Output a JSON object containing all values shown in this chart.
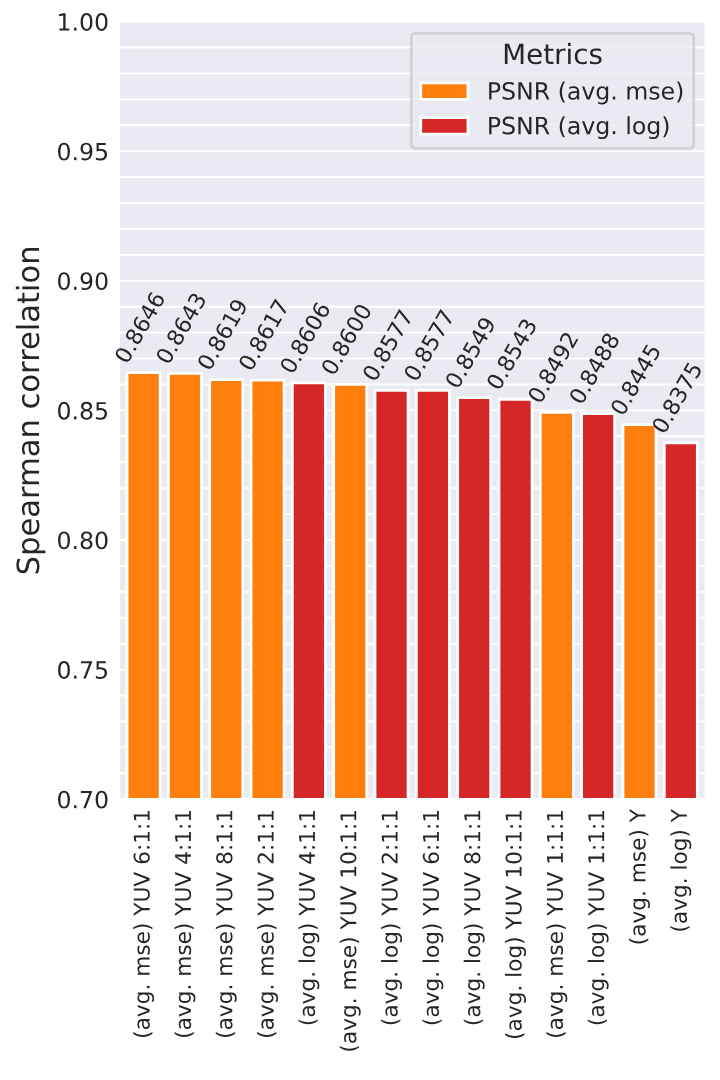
{
  "chart_data": {
    "type": "bar",
    "categories": [
      "(avg. mse) YUV 6:1:1",
      "(avg. mse) YUV 4:1:1",
      "(avg. mse) YUV 8:1:1",
      "(avg. mse) YUV 2:1:1",
      "(avg. log) YUV 4:1:1",
      "(avg. mse) YUV 10:1:1",
      "(avg. log) YUV 2:1:1",
      "(avg. log) YUV 6:1:1",
      "(avg. log) YUV 8:1:1",
      "(avg. log) YUV 10:1:1",
      "(avg. mse) YUV 1:1:1",
      "(avg. log) YUV 1:1:1",
      "(avg. mse) Y",
      "(avg. log) Y"
    ],
    "series": [
      {
        "name": "PSNR (avg. mse)",
        "color": "#ff7f0e",
        "values": [
          0.8646,
          0.8643,
          0.8619,
          0.8617,
          null,
          0.86,
          null,
          null,
          null,
          null,
          0.8492,
          null,
          0.8445,
          null
        ],
        "value_labels": [
          "0.8646",
          "0.8643",
          "0.8619",
          "0.8617",
          null,
          "0.8600",
          null,
          null,
          null,
          null,
          "0.8492",
          null,
          "0.8445",
          null
        ]
      },
      {
        "name": "PSNR (avg. log)",
        "color": "#d62728",
        "values": [
          null,
          null,
          null,
          null,
          0.8606,
          null,
          0.8577,
          0.8577,
          0.8549,
          0.8543,
          null,
          0.8488,
          null,
          0.8375
        ],
        "value_labels": [
          null,
          null,
          null,
          null,
          "0.8606",
          null,
          "0.8577",
          "0.8577",
          "0.8549",
          "0.8543",
          null,
          "0.8488",
          null,
          "0.8375"
        ]
      }
    ],
    "ylabel": "Spearman correlation",
    "legend_title": "Metrics",
    "legend": "top right",
    "ylim": [
      0.7,
      1.0
    ],
    "yticks": [
      {
        "value": 0.7,
        "label": "0.70"
      },
      {
        "value": 0.71,
        "label": null
      },
      {
        "value": 0.72,
        "label": null
      },
      {
        "value": 0.73,
        "label": null
      },
      {
        "value": 0.74,
        "label": null
      },
      {
        "value": 0.75,
        "label": "0.75"
      },
      {
        "value": 0.76,
        "label": null
      },
      {
        "value": 0.77,
        "label": null
      },
      {
        "value": 0.78,
        "label": null
      },
      {
        "value": 0.79,
        "label": null
      },
      {
        "value": 0.8,
        "label": "0.80"
      },
      {
        "value": 0.81,
        "label": null
      },
      {
        "value": 0.82,
        "label": null
      },
      {
        "value": 0.83,
        "label": null
      },
      {
        "value": 0.84,
        "label": null
      },
      {
        "value": 0.85,
        "label": "0.85"
      },
      {
        "value": 0.86,
        "label": null
      },
      {
        "value": 0.87,
        "label": null
      },
      {
        "value": 0.88,
        "label": null
      },
      {
        "value": 0.89,
        "label": null
      },
      {
        "value": 0.9,
        "label": "0.90"
      },
      {
        "value": 0.91,
        "label": null
      },
      {
        "value": 0.92,
        "label": null
      },
      {
        "value": 0.93,
        "label": null
      },
      {
        "value": 0.94,
        "label": null
      },
      {
        "value": 0.95,
        "label": "0.95"
      },
      {
        "value": 0.96,
        "label": null
      },
      {
        "value": 0.97,
        "label": null
      },
      {
        "value": 0.98,
        "label": null
      },
      {
        "value": 0.99,
        "label": null
      },
      {
        "value": 1.0,
        "label": "1.00"
      }
    ],
    "grid": true
  }
}
